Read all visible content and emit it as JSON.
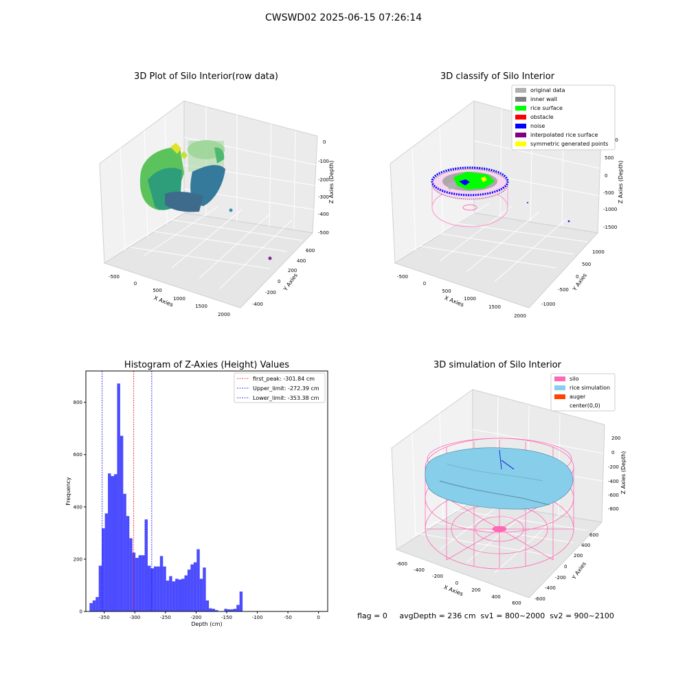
{
  "suptitle": "CWSWD02 2025-06-15 07:26:14",
  "plot_top_left": {
    "title": "3D Plot of Silo Interior(row data)",
    "xlabel": "X Axies",
    "ylabel": "Y Axies",
    "zlabel": "Z Axies (Depth)",
    "xticks": [
      "-500",
      "0",
      "500",
      "1000",
      "1500",
      "2000"
    ],
    "yticks": [
      "-400",
      "-200",
      "0",
      "200",
      "400",
      "600"
    ],
    "zticks": [
      "0",
      "-100",
      "-200",
      "-300",
      "-400",
      "-500"
    ]
  },
  "plot_top_right": {
    "title": "3D classify of Silo Interior",
    "xlabel": "X Axies",
    "ylabel": "Y Axies",
    "zlabel": "Z Axies (Depth)",
    "xticks": [
      "-500",
      "0",
      "500",
      "1000",
      "1500",
      "2000"
    ],
    "yticks": [
      "-1000",
      "-500",
      "0",
      "500",
      "1000"
    ],
    "zticks": [
      "1000",
      "500",
      "0",
      "-500",
      "-1000",
      "-1500"
    ],
    "legend": [
      {
        "label": "original data",
        "color": "#b0b0b0"
      },
      {
        "label": "inner wall",
        "color": "#808080"
      },
      {
        "label": "rice surface",
        "color": "#00ff00"
      },
      {
        "label": "obstacle",
        "color": "#ff0000"
      },
      {
        "label": "noise",
        "color": "#0000ff"
      },
      {
        "label": "interpolated rice surface",
        "color": "#800080"
      },
      {
        "label": "symmetric generated points",
        "color": "#ffff00"
      }
    ]
  },
  "plot_bottom_right": {
    "title": "3D simulation of Silo Interior",
    "xlabel": "X Axies",
    "ylabel": "Y Axies",
    "zlabel": "Z Axies (Depth)",
    "xticks": [
      "-600",
      "-400",
      "-200",
      "0",
      "200",
      "400",
      "600"
    ],
    "yticks": [
      "-600",
      "-400",
      "-200",
      "0",
      "200",
      "400",
      "600"
    ],
    "zticks": [
      "200",
      "0",
      "-200",
      "-400",
      "-600",
      "-800"
    ],
    "legend": [
      {
        "label": "silo",
        "color": "#ff69b4"
      },
      {
        "label": "rice simulation",
        "color": "#87ceeb"
      },
      {
        "label": "auger",
        "color": "#ff4500"
      },
      {
        "label": "center(0,0)",
        "color": ""
      }
    ]
  },
  "footer": {
    "flag": "flag = 0",
    "stats": "avgDepth = 236 cm  sv1 = 800~2000  sv2 = 900~2100"
  },
  "chart_data": {
    "type": "bar",
    "title": "Histogram of Z-Axies (Height) Values",
    "xlabel": "Depth (cm)",
    "ylabel": "Frequency",
    "xlim": [
      -380,
      15
    ],
    "ylim": [
      0,
      920
    ],
    "xticks": [
      -350,
      -300,
      -250,
      -200,
      -150,
      -100,
      -50,
      0
    ],
    "yticks": [
      0,
      200,
      400,
      600,
      800
    ],
    "bar_color": "#0000ff",
    "bin_edges_start": -374,
    "bin_width": 5,
    "values": [
      32,
      42,
      55,
      175,
      318,
      375,
      528,
      518,
      525,
      872,
      672,
      450,
      365,
      280,
      225,
      205,
      215,
      215,
      352,
      175,
      165,
      172,
      172,
      212,
      172,
      118,
      135,
      115,
      125,
      122,
      125,
      138,
      160,
      180,
      188,
      238,
      125,
      168,
      42,
      12,
      10,
      5,
      0,
      0,
      10,
      8,
      8,
      10,
      25,
      76
    ],
    "lines": [
      {
        "label": "first_peak: -301.84 cm",
        "x": -301.84,
        "color": "#ff0000"
      },
      {
        "label": "Upper_limit: -272.39 cm",
        "x": -272.39,
        "color": "#0000ff"
      },
      {
        "label": "Lower_limit: -353.38 cm",
        "x": -353.38,
        "color": "#0000ff"
      }
    ]
  }
}
